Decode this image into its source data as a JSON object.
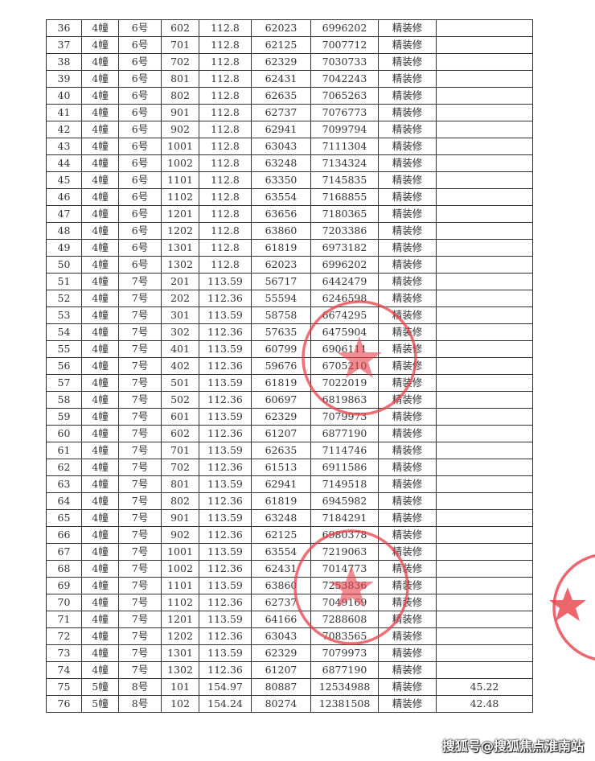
{
  "table": {
    "rows": [
      [
        "36",
        "4幢",
        "6号",
        "602",
        "112.8",
        "62023",
        "6996202",
        "精装修",
        ""
      ],
      [
        "37",
        "4幢",
        "6号",
        "701",
        "112.8",
        "62125",
        "7007712",
        "精装修",
        ""
      ],
      [
        "38",
        "4幢",
        "6号",
        "702",
        "112.8",
        "62329",
        "7030733",
        "精装修",
        ""
      ],
      [
        "39",
        "4幢",
        "6号",
        "801",
        "112.8",
        "62431",
        "7042243",
        "精装修",
        ""
      ],
      [
        "40",
        "4幢",
        "6号",
        "802",
        "112.8",
        "62635",
        "7065263",
        "精装修",
        ""
      ],
      [
        "41",
        "4幢",
        "6号",
        "901",
        "112.8",
        "62737",
        "7076773",
        "精装修",
        ""
      ],
      [
        "42",
        "4幢",
        "6号",
        "902",
        "112.8",
        "62941",
        "7099794",
        "精装修",
        ""
      ],
      [
        "43",
        "4幢",
        "6号",
        "1001",
        "112.8",
        "63043",
        "7111304",
        "精装修",
        ""
      ],
      [
        "44",
        "4幢",
        "6号",
        "1002",
        "112.8",
        "63248",
        "7134324",
        "精装修",
        ""
      ],
      [
        "45",
        "4幢",
        "6号",
        "1101",
        "112.8",
        "63350",
        "7145835",
        "精装修",
        ""
      ],
      [
        "46",
        "4幢",
        "6号",
        "1102",
        "112.8",
        "63554",
        "7168855",
        "精装修",
        ""
      ],
      [
        "47",
        "4幢",
        "6号",
        "1201",
        "112.8",
        "63656",
        "7180365",
        "精装修",
        ""
      ],
      [
        "48",
        "4幢",
        "6号",
        "1202",
        "112.8",
        "63860",
        "7203386",
        "精装修",
        ""
      ],
      [
        "49",
        "4幢",
        "6号",
        "1301",
        "112.8",
        "61819",
        "6973182",
        "精装修",
        ""
      ],
      [
        "50",
        "4幢",
        "6号",
        "1302",
        "112.8",
        "62023",
        "6996202",
        "精装修",
        ""
      ],
      [
        "51",
        "4幢",
        "7号",
        "201",
        "113.59",
        "56717",
        "6442479",
        "精装修",
        ""
      ],
      [
        "52",
        "4幢",
        "7号",
        "202",
        "112.36",
        "55594",
        "6246598",
        "精装修",
        ""
      ],
      [
        "53",
        "4幢",
        "7号",
        "301",
        "113.59",
        "58758",
        "6674295",
        "精装修",
        ""
      ],
      [
        "54",
        "4幢",
        "7号",
        "302",
        "112.36",
        "57635",
        "6475904",
        "精装修",
        ""
      ],
      [
        "55",
        "4幢",
        "7号",
        "401",
        "113.59",
        "60799",
        "6906111",
        "精装修",
        ""
      ],
      [
        "56",
        "4幢",
        "7号",
        "402",
        "112.36",
        "59676",
        "6705210",
        "精装修",
        ""
      ],
      [
        "57",
        "4幢",
        "7号",
        "501",
        "113.59",
        "61819",
        "7022019",
        "精装修",
        ""
      ],
      [
        "58",
        "4幢",
        "7号",
        "502",
        "112.36",
        "60697",
        "6819863",
        "精装修",
        ""
      ],
      [
        "59",
        "4幢",
        "7号",
        "601",
        "113.59",
        "62329",
        "7079973",
        "精装修",
        ""
      ],
      [
        "60",
        "4幢",
        "7号",
        "602",
        "112.36",
        "61207",
        "6877190",
        "精装修",
        ""
      ],
      [
        "61",
        "4幢",
        "7号",
        "701",
        "113.59",
        "62635",
        "7114746",
        "精装修",
        ""
      ],
      [
        "62",
        "4幢",
        "7号",
        "702",
        "112.36",
        "61513",
        "6911586",
        "精装修",
        ""
      ],
      [
        "63",
        "4幢",
        "7号",
        "801",
        "113.59",
        "62941",
        "7149518",
        "精装修",
        ""
      ],
      [
        "64",
        "4幢",
        "7号",
        "802",
        "112.36",
        "61819",
        "6945982",
        "精装修",
        ""
      ],
      [
        "65",
        "4幢",
        "7号",
        "901",
        "113.59",
        "63248",
        "7184291",
        "精装修",
        ""
      ],
      [
        "66",
        "4幢",
        "7号",
        "902",
        "112.36",
        "62125",
        "6980378",
        "精装修",
        ""
      ],
      [
        "67",
        "4幢",
        "7号",
        "1001",
        "113.59",
        "63554",
        "7219063",
        "精装修",
        ""
      ],
      [
        "68",
        "4幢",
        "7号",
        "1002",
        "112.36",
        "62431",
        "7014773",
        "精装修",
        ""
      ],
      [
        "69",
        "4幢",
        "7号",
        "1101",
        "113.59",
        "63860",
        "7253836",
        "精装修",
        ""
      ],
      [
        "70",
        "4幢",
        "7号",
        "1102",
        "112.36",
        "62737",
        "7049169",
        "精装修",
        ""
      ],
      [
        "71",
        "4幢",
        "7号",
        "1201",
        "113.59",
        "64166",
        "7288608",
        "精装修",
        ""
      ],
      [
        "72",
        "4幢",
        "7号",
        "1202",
        "112.36",
        "63043",
        "7083565",
        "精装修",
        ""
      ],
      [
        "73",
        "4幢",
        "7号",
        "1301",
        "113.59",
        "62329",
        "7079973",
        "精装修",
        ""
      ],
      [
        "74",
        "4幢",
        "7号",
        "1302",
        "112.36",
        "61207",
        "6877190",
        "精装修",
        ""
      ],
      [
        "75",
        "5幢",
        "8号",
        "101",
        "154.97",
        "80887",
        "12534988",
        "精装修",
        "45.22"
      ],
      [
        "76",
        "5幢",
        "8号",
        "102",
        "154.24",
        "80274",
        "12381508",
        "精装修",
        "42.48"
      ]
    ]
  },
  "watermark": "搜狐号@搜狐焦点淮南站",
  "colors": {
    "stamp": "#e8404a",
    "text": "#333333"
  }
}
